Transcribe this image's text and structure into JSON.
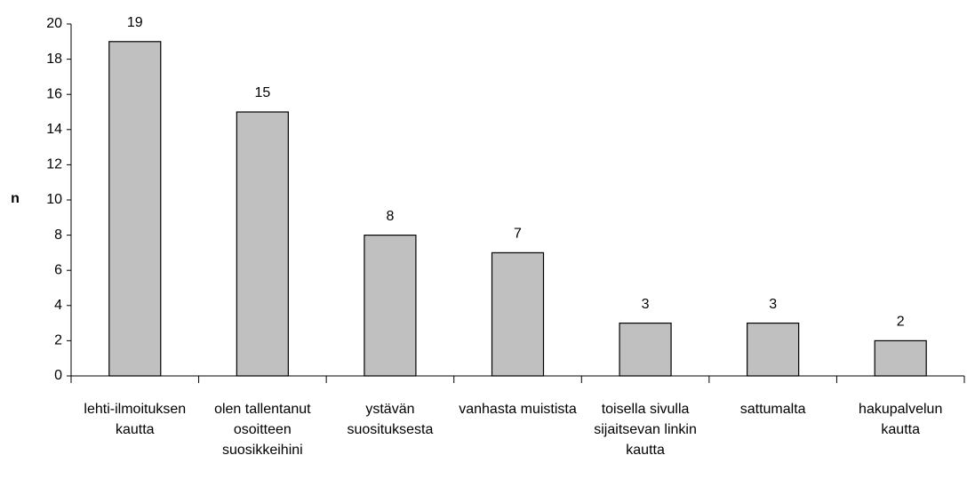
{
  "chart_data": {
    "type": "bar",
    "ylabel": "n",
    "categories": [
      "lehti-ilmoituksen kautta",
      "olen tallentanut osoitteen suosikkeihini",
      "ystävän suosituksesta",
      "vanhasta muistista",
      "toisella sivulla sijaitsevan linkin kautta",
      "sattumalta",
      "hakupalvelun kautta"
    ],
    "values": [
      19,
      15,
      8,
      7,
      3,
      3,
      2
    ],
    "color": "#c0c0c0",
    "ylim": [
      0,
      20
    ],
    "yticks": [
      0,
      2,
      4,
      6,
      8,
      10,
      12,
      14,
      16,
      18,
      20
    ],
    "grid": false,
    "data_labels": true
  }
}
